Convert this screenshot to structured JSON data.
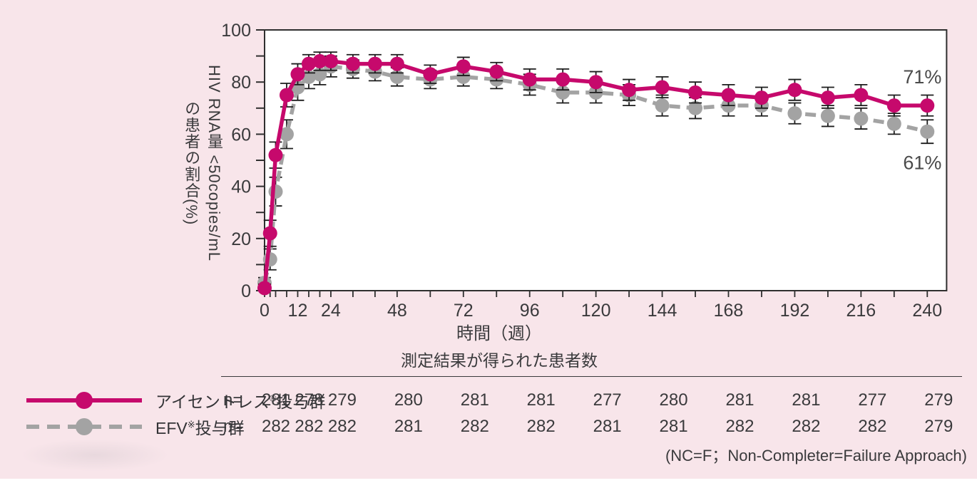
{
  "figure": {
    "background": "#f8e5ea",
    "plot_background": "#ffffff",
    "axis_color": "#2f2f2f",
    "text_color": "#3a3a3c",
    "footnote": "(NC=F；Non-Completer=Failure Approach)"
  },
  "chart_data": {
    "type": "line",
    "title": "",
    "xlabel": "時間（週）",
    "ylabel": "HIV RNA量 <50copies/mL の患者の割合(%)",
    "ylabel_lines": [
      "HIV RNA量 <50copies/mL",
      "の患者の割合(%)"
    ],
    "xlim": [
      0,
      247
    ],
    "ylim": [
      0,
      100
    ],
    "x_major_ticks": [
      0,
      12,
      24,
      48,
      72,
      96,
      120,
      144,
      168,
      192,
      216,
      240
    ],
    "y_major_ticks": [
      0,
      20,
      40,
      60,
      80,
      100
    ],
    "y_minor_ticks": [
      10,
      30,
      50,
      70,
      90
    ],
    "grid": false,
    "legend_position": "bottom-left",
    "x": [
      0,
      2,
      4,
      8,
      12,
      16,
      20,
      24,
      32,
      40,
      48,
      60,
      72,
      84,
      96,
      108,
      120,
      132,
      144,
      156,
      168,
      180,
      192,
      204,
      216,
      228,
      240
    ],
    "series": [
      {
        "name": "アイセントレス®投与群",
        "label": {
          "pre": "アイセントレス",
          "sup": "®",
          "post": "投与群"
        },
        "color": "#c6096c",
        "line_style": "solid",
        "end_label": "71%",
        "values": [
          1,
          22,
          52,
          75,
          83,
          87,
          88,
          88,
          87,
          87,
          87,
          83,
          86,
          84,
          81,
          81,
          80,
          77,
          78,
          76,
          75,
          74,
          77,
          74,
          75,
          71,
          71
        ],
        "errors": [
          1.5,
          5,
          5,
          4.5,
          4,
          3.5,
          3.5,
          3.5,
          3.5,
          3.5,
          3.5,
          3.5,
          3.5,
          3.5,
          4,
          4,
          4,
          4,
          4,
          4,
          4,
          4,
          4,
          4,
          4,
          4,
          4
        ]
      },
      {
        "name": "EFV※投与群",
        "label": {
          "pre": "EFV",
          "sup": "※",
          "post": "投与群"
        },
        "color": "#a3a3a3",
        "line_style": "dashed",
        "end_label": "61%",
        "values": [
          3,
          12,
          38,
          60,
          78,
          82,
          83,
          86,
          85,
          84,
          82,
          81,
          82,
          81,
          79,
          76,
          76,
          75,
          71,
          70,
          71,
          71,
          68,
          67,
          66,
          64,
          61
        ],
        "errors": [
          2,
          4,
          5.5,
          5.5,
          5,
          4.5,
          4,
          4,
          3.5,
          3.5,
          3.5,
          3.5,
          3.5,
          3.5,
          4,
          4,
          4,
          4,
          4,
          4,
          4,
          4,
          4,
          4,
          4,
          4,
          4.5
        ]
      }
    ],
    "error_bar_color": "#1c1c1c",
    "end_label_color": "#4a4a4a",
    "table": {
      "header": "測定結果が得られた患者数",
      "row_prefix": "n=",
      "columns_weeks": [
        0,
        12,
        24,
        48,
        72,
        96,
        120,
        144,
        168,
        192,
        216,
        240
      ],
      "rows": [
        {
          "series": "アイセントレス®投与群",
          "values": [
            281,
            278,
            279,
            280,
            281,
            281,
            277,
            280,
            281,
            281,
            277,
            279
          ]
        },
        {
          "series": "EFV※投与群",
          "values": [
            282,
            282,
            282,
            281,
            282,
            282,
            281,
            281,
            282,
            282,
            282,
            279
          ]
        }
      ]
    }
  }
}
